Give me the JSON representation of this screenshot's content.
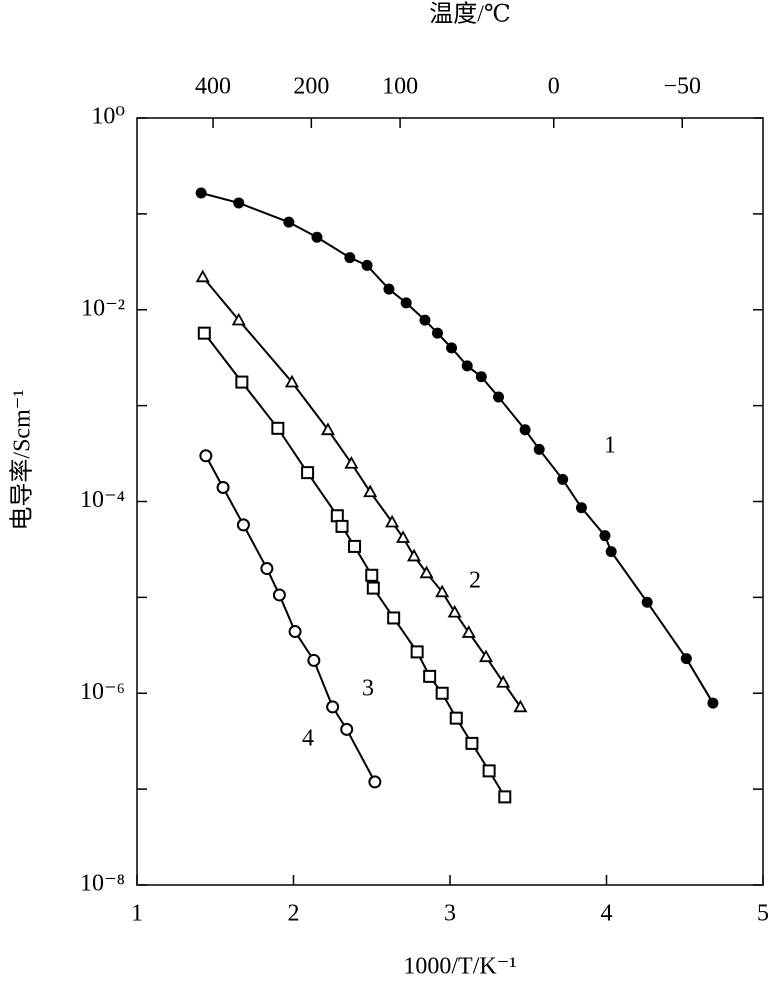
{
  "chart_data": {
    "type": "scatter",
    "title": "温度/℃",
    "x_label": "1000/T/K⁻¹",
    "y_label": "电导率/Scm⁻¹",
    "log_y": true,
    "xlim": [
      1,
      5
    ],
    "xticks": [
      1,
      2,
      3,
      4,
      5
    ],
    "x2ticks": [
      {
        "value": 1.486,
        "label": "400"
      },
      {
        "value": 2.114,
        "label": "200"
      },
      {
        "value": 2.681,
        "label": "100"
      },
      {
        "value": 3.663,
        "label": "0"
      },
      {
        "value": 4.484,
        "label": "−50"
      }
    ],
    "ylim": [
      1e-08,
      1
    ],
    "yticks": [
      {
        "value": 1,
        "label": "10⁰"
      },
      {
        "value": 0.01,
        "label": "10⁻²"
      },
      {
        "value": 0.0001,
        "label": "10⁻⁴"
      },
      {
        "value": 1e-06,
        "label": "10⁻⁶"
      },
      {
        "value": 1e-08,
        "label": "10⁻⁸"
      }
    ],
    "yticks_minor": [
      0.1,
      0.001,
      1e-05,
      1e-07
    ],
    "series": [
      {
        "name": "1",
        "color": "#000000",
        "marker": "filled-circle",
        "x": [
          1.41,
          1.65,
          1.97,
          2.15,
          2.36,
          2.47,
          2.61,
          2.72,
          2.84,
          2.92,
          3.01,
          3.11,
          3.2,
          3.31,
          3.48,
          3.57,
          3.72,
          3.84,
          3.99,
          4.03,
          4.26,
          4.51,
          4.68
        ],
        "values": [
          0.165,
          0.13,
          0.082,
          0.057,
          0.035,
          0.029,
          0.0164,
          0.0118,
          0.0078,
          0.0057,
          0.004,
          0.0026,
          0.002,
          0.00123,
          0.00056,
          0.00035,
          0.00017,
          8.6e-05,
          4.4e-05,
          3e-05,
          8.9e-06,
          2.3e-06,
          7.9e-07
        ]
      },
      {
        "name": "2",
        "color": "#000000",
        "marker": "triangle",
        "x": [
          1.42,
          1.65,
          1.99,
          2.22,
          2.37,
          2.49,
          2.63,
          2.7,
          2.77,
          2.85,
          2.95,
          3.03,
          3.12,
          3.23,
          3.34,
          3.45
        ],
        "values": [
          0.022,
          0.0078,
          0.00176,
          0.00056,
          0.00025,
          0.000126,
          6.1e-05,
          4.2e-05,
          2.7e-05,
          1.8e-05,
          1.14e-05,
          7e-06,
          4.3e-06,
          2.4e-06,
          1.3e-06,
          7.2e-07
        ]
      },
      {
        "name": "3",
        "color": "#000000",
        "marker": "square",
        "x": [
          1.43,
          1.67,
          1.9,
          2.09,
          2.28,
          2.31,
          2.39,
          2.5,
          2.51,
          2.64,
          2.79,
          2.87,
          2.95,
          3.04,
          3.14,
          3.25,
          3.35
        ],
        "values": [
          0.0057,
          0.00176,
          0.00058,
          0.0002,
          7.1e-05,
          5.5e-05,
          3.4e-05,
          1.7e-05,
          1.25e-05,
          6.1e-06,
          2.7e-06,
          1.5e-06,
          1e-06,
          5.5e-07,
          3e-07,
          1.55e-07,
          8.3e-08
        ]
      },
      {
        "name": "4",
        "color": "#000000",
        "marker": "circle",
        "x": [
          1.44,
          1.55,
          1.68,
          1.83,
          1.91,
          2.01,
          2.13,
          2.25,
          2.34,
          2.52
        ],
        "values": [
          0.0003,
          0.00014,
          5.7e-05,
          2e-05,
          1.06e-05,
          4.4e-06,
          2.2e-06,
          7.2e-07,
          4.2e-07,
          1.19e-07
        ]
      }
    ]
  }
}
